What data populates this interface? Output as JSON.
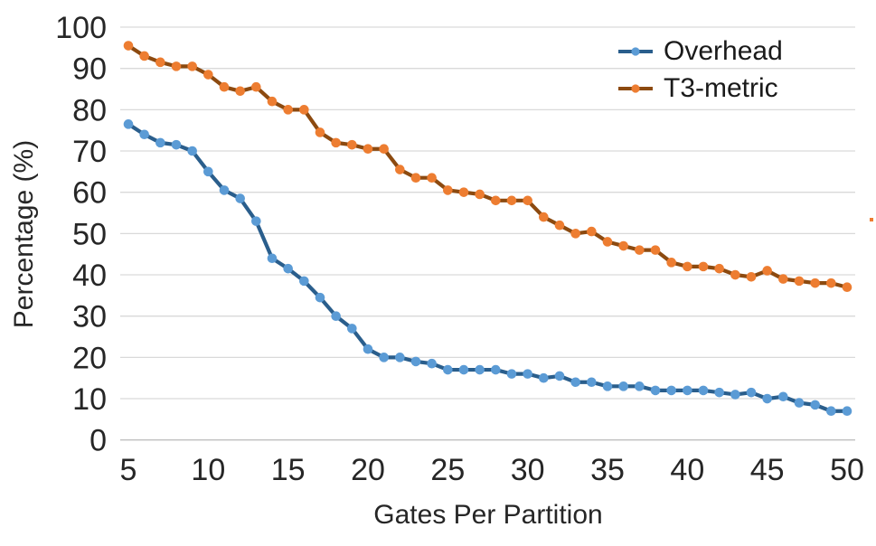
{
  "chart_data": {
    "type": "line",
    "title": "",
    "xlabel": "Gates Per Partition",
    "ylabel": "Percentage (%)",
    "x": [
      5,
      6,
      7,
      8,
      9,
      10,
      11,
      12,
      13,
      14,
      15,
      16,
      17,
      18,
      19,
      20,
      21,
      22,
      23,
      24,
      25,
      26,
      27,
      28,
      29,
      30,
      31,
      32,
      33,
      34,
      35,
      36,
      37,
      38,
      39,
      40,
      41,
      42,
      43,
      44,
      45,
      46,
      47,
      48,
      49,
      50
    ],
    "series": [
      {
        "name": "Overhead",
        "line_color": "#2A5E8C",
        "marker_color": "#5B9BD5",
        "values": [
          76.5,
          74,
          72,
          71.5,
          70,
          65,
          60.5,
          58.5,
          53,
          44,
          41.5,
          38.5,
          34.5,
          30,
          27,
          22,
          20,
          20,
          19,
          18.5,
          17,
          17,
          17,
          17,
          16,
          16,
          15,
          15.5,
          14,
          14,
          13,
          13,
          13,
          12,
          12,
          12,
          12,
          11.5,
          11,
          11.5,
          10,
          10.5,
          9,
          8.5,
          7,
          7
        ]
      },
      {
        "name": "T3-metric",
        "line_color": "#8C4A10",
        "marker_color": "#ED7D31",
        "values": [
          95.5,
          93,
          91.5,
          90.5,
          90.5,
          88.5,
          85.5,
          84.5,
          85.5,
          82,
          80,
          80,
          74.5,
          72,
          71.5,
          70.5,
          70.5,
          65.5,
          63.5,
          63.5,
          60.5,
          60,
          59.5,
          58,
          58,
          58,
          54,
          52,
          50,
          50.5,
          48,
          47,
          46,
          46,
          43,
          42,
          42,
          41.5,
          40,
          39.5,
          41,
          39,
          38.5,
          38,
          38,
          37
        ]
      }
    ],
    "xlim": [
      5,
      50
    ],
    "ylim": [
      0,
      100
    ],
    "x_ticks": [
      5,
      10,
      15,
      20,
      25,
      30,
      35,
      40,
      45,
      50
    ],
    "y_ticks": [
      0,
      10,
      20,
      30,
      40,
      50,
      60,
      70,
      80,
      90,
      100
    ],
    "grid": "horizontal",
    "gridline_color": "#D9D9D9",
    "baseline_color": "#BFBFBF",
    "tick_label_color": "#262626",
    "legend_position": "top-right",
    "background_color": "#FFFFFF"
  }
}
